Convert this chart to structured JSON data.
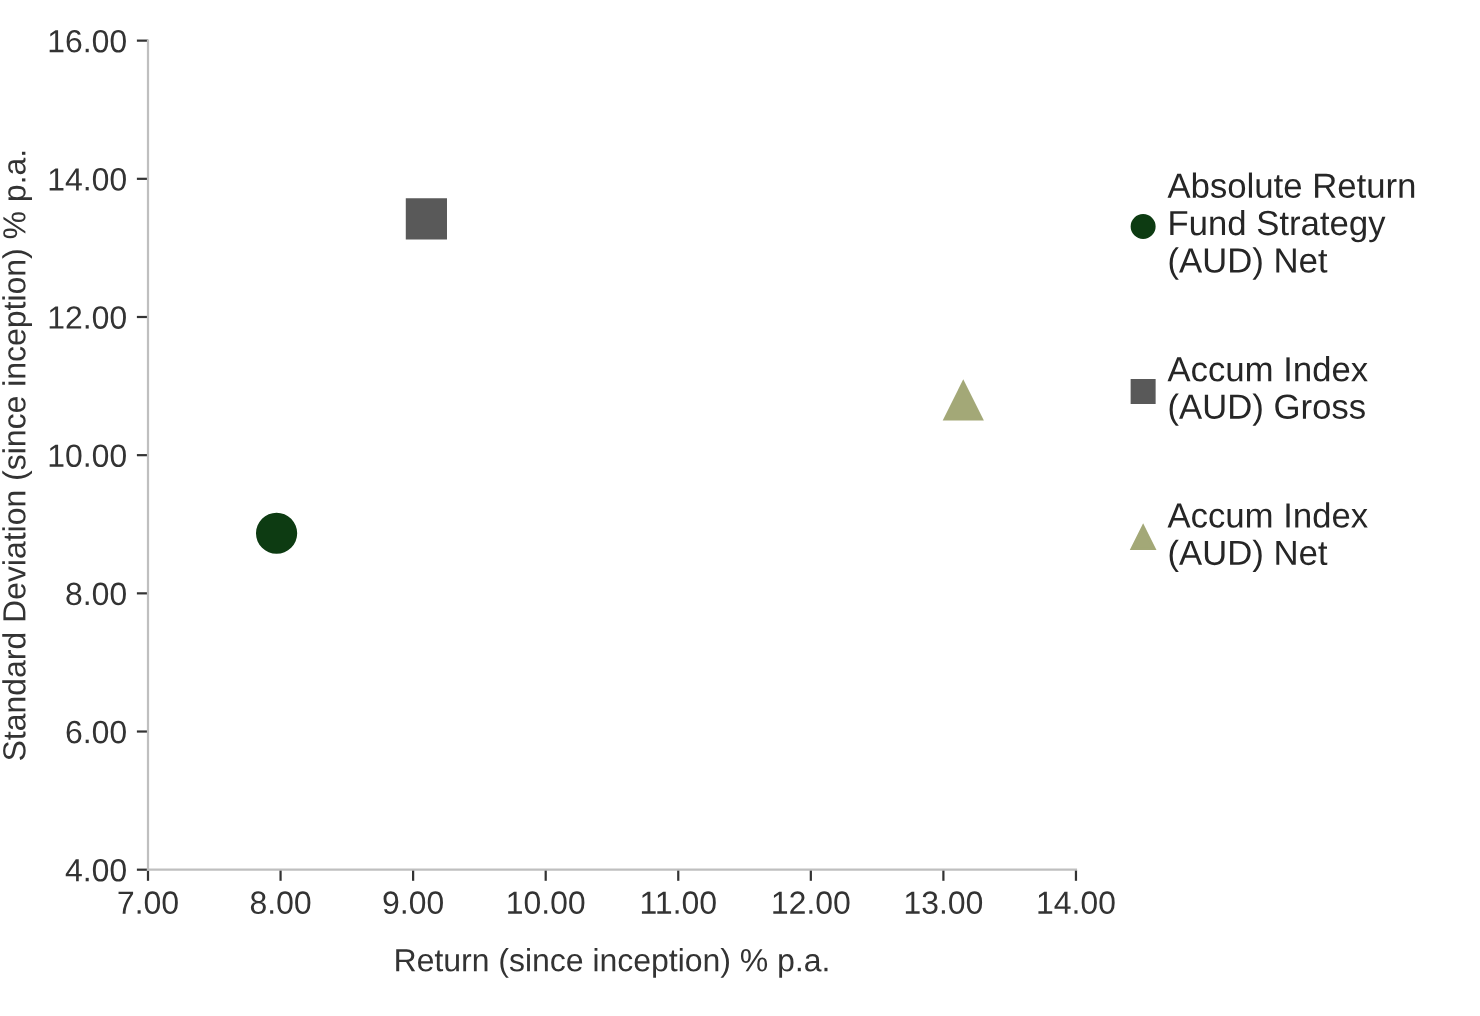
{
  "chart_data": {
    "type": "scatter",
    "xlabel": "Return (since inception) % p.a.",
    "ylabel": "Standard Deviation (since inception) % p.a.",
    "series": [
      {
        "name": "Absolute Return Fund Strategy (AUD) Net",
        "color": "#0d3b12",
        "marker": "circle",
        "x": [
          7.97
        ],
        "values": [
          8.87
        ]
      },
      {
        "name": "Accum Index (AUD) Gross",
        "color": "#595959",
        "marker": "square",
        "x": [
          9.1
        ],
        "values": [
          13.42
        ]
      },
      {
        "name": "Accum Index (AUD) Net",
        "color": "#a3a877",
        "marker": "triangle",
        "x": [
          13.15
        ],
        "values": [
          10.8
        ]
      }
    ],
    "xlim": [
      7,
      14
    ],
    "xticks": [
      {
        "value": 7,
        "label": "7.00"
      },
      {
        "value": 8,
        "label": "8.00"
      },
      {
        "value": 9,
        "label": "9.00"
      },
      {
        "value": 10,
        "label": "10.00"
      },
      {
        "value": 11,
        "label": "11.00"
      },
      {
        "value": 12,
        "label": "12.00"
      },
      {
        "value": 13,
        "label": "13.00"
      },
      {
        "value": 14,
        "label": "14.00"
      }
    ],
    "ylim": [
      4,
      16
    ],
    "yticks": [
      {
        "value": 4,
        "label": "4.00"
      },
      {
        "value": 6,
        "label": "6.00"
      },
      {
        "value": 8,
        "label": "8.00"
      },
      {
        "value": 10,
        "label": "10.00"
      },
      {
        "value": 12,
        "label": "12.00"
      },
      {
        "value": 14,
        "label": "14.00"
      },
      {
        "value": 16,
        "label": "16.00"
      }
    ],
    "grid": false,
    "legend": "right"
  }
}
